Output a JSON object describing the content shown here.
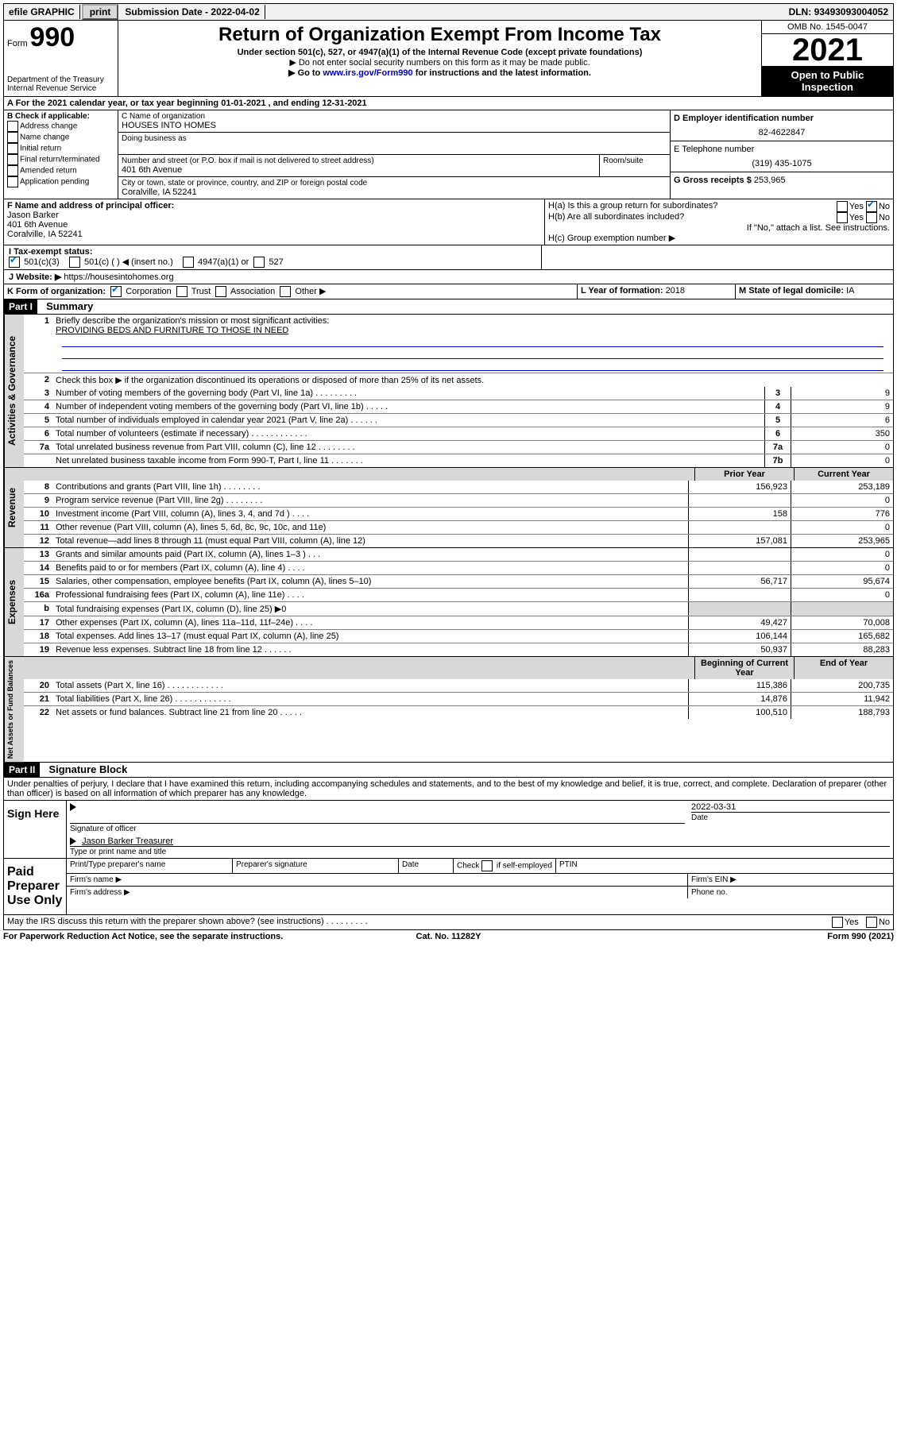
{
  "topbar": {
    "efile": "efile GRAPHIC",
    "print": "print",
    "sub_label": "Submission Date - ",
    "sub_date": "2022-04-02",
    "dln_label": "DLN: ",
    "dln": "93493093004052"
  },
  "header": {
    "form_prefix": "Form",
    "form_no": "990",
    "dept": "Department of the Treasury",
    "irs": "Internal Revenue Service",
    "title": "Return of Organization Exempt From Income Tax",
    "sub1": "Under section 501(c), 527, or 4947(a)(1) of the Internal Revenue Code (except private foundations)",
    "sub2": "▶ Do not enter social security numbers on this form as it may be made public.",
    "sub3_a": "▶ Go to ",
    "sub3_link": "www.irs.gov/Form990",
    "sub3_b": " for instructions and the latest information.",
    "omb": "OMB No. 1545-0047",
    "year": "2021",
    "open": "Open to Public Inspection"
  },
  "period": {
    "a": "A For the 2021 calendar year, or tax year beginning ",
    "begin": "01-01-2021",
    "mid": " , and ending ",
    "end": "12-31-2021"
  },
  "boxB": {
    "title": "B Check if applicable:",
    "items": [
      "Address change",
      "Name change",
      "Initial return",
      "Final return/terminated",
      "Amended return",
      "Application pending"
    ]
  },
  "boxC": {
    "c_label": "C Name of organization",
    "org": "HOUSES INTO HOMES",
    "dba_label": "Doing business as",
    "addr_label": "Number and street (or P.O. box if mail is not delivered to street address)",
    "room_label": "Room/suite",
    "addr": "401 6th Avenue",
    "city_label": "City or town, state or province, country, and ZIP or foreign postal code",
    "city": "Coralville, IA  52241"
  },
  "boxD": {
    "d_label": "D Employer identification number",
    "ein": "82-4622847",
    "e_label": "E Telephone number",
    "phone": "(319) 435-1075",
    "g_label": "G Gross receipts $ ",
    "gross": "253,965"
  },
  "boxF": {
    "label": "F Name and address of principal officer:",
    "name": "Jason Barker",
    "addr1": "401 6th Avenue",
    "addr2": "Coralville, IA  52241"
  },
  "boxH": {
    "ha": "H(a)  Is this a group return for subordinates?",
    "hb": "H(b)  Are all subordinates included?",
    "hb_note": "If \"No,\" attach a list. See instructions.",
    "hc": "H(c)  Group exemption number ▶",
    "yes": "Yes",
    "no": "No"
  },
  "boxI": {
    "label": "I   Tax-exempt status:",
    "opt1": "501(c)(3)",
    "opt2": "501(c) (   ) ◀ (insert no.)",
    "opt3": "4947(a)(1) or",
    "opt4": "527"
  },
  "boxJ": {
    "label": "J   Website: ▶ ",
    "url": "https://housesintohomes.org"
  },
  "boxK": {
    "label": "K Form of organization:",
    "opts": [
      "Corporation",
      "Trust",
      "Association",
      "Other ▶"
    ]
  },
  "boxL": {
    "label": "L Year of formation: ",
    "val": "2018"
  },
  "boxM": {
    "label": "M State of legal domicile: ",
    "val": "IA"
  },
  "part1": {
    "tag": "Part I",
    "title": "Summary",
    "q1_label": "1",
    "q1": "Briefly describe the organization's mission or most significant activities:",
    "mission": "PROVIDING BEDS AND FURNITURE TO THOSE IN NEED",
    "q2_label": "2",
    "q2": "Check this box ▶        if the organization discontinued its operations or disposed of more than 25% of its net assets."
  },
  "governance": {
    "label": "Activities & Governance",
    "rows": [
      {
        "n": "3",
        "d": "Number of voting members of the governing body (Part VI, line 1a)   .    .    .    .    .    .    .    .    .",
        "b": "3",
        "v": "9"
      },
      {
        "n": "4",
        "d": "Number of independent voting members of the governing body (Part VI, line 1b)   .    .    .    .    .",
        "b": "4",
        "v": "9"
      },
      {
        "n": "5",
        "d": "Total number of individuals employed in calendar year 2021 (Part V, line 2a)    .    .    .    .    .    .",
        "b": "5",
        "v": "6"
      },
      {
        "n": "6",
        "d": "Total number of volunteers (estimate if necessary)     .    .    .    .    .    .    .    .    .    .    .    .",
        "b": "6",
        "v": "350"
      },
      {
        "n": "7a",
        "d": "Total unrelated business revenue from Part VIII, column (C), line 12    .    .    .    .    .    .    .    .",
        "b": "7a",
        "v": "0"
      },
      {
        "n": "",
        "d": "Net unrelated business taxable income from Form 990-T, Part I, line 11    .    .    .    .    .    .    .",
        "b": "7b",
        "v": "0"
      }
    ]
  },
  "revenue": {
    "label": "Revenue",
    "hdr_prior": "Prior Year",
    "hdr_curr": "Current Year",
    "rows": [
      {
        "n": "8",
        "d": "Contributions and grants (Part VIII, line 1h)    .    .    .    .    .    .    .    .",
        "p": "156,923",
        "c": "253,189"
      },
      {
        "n": "9",
        "d": "Program service revenue (Part VIII, line 2g)    .    .    .    .    .    .    .    .",
        "p": "",
        "c": "0"
      },
      {
        "n": "10",
        "d": "Investment income (Part VIII, column (A), lines 3, 4, and 7d )    .    .    .    .",
        "p": "158",
        "c": "776"
      },
      {
        "n": "11",
        "d": "Other revenue (Part VIII, column (A), lines 5, 6d, 8c, 9c, 10c, and 11e)",
        "p": "",
        "c": "0"
      },
      {
        "n": "12",
        "d": "Total revenue—add lines 8 through 11 (must equal Part VIII, column (A), line 12)",
        "p": "157,081",
        "c": "253,965"
      }
    ]
  },
  "expenses": {
    "label": "Expenses",
    "rows": [
      {
        "n": "13",
        "d": "Grants and similar amounts paid (Part IX, column (A), lines 1–3 )    .    .    .",
        "p": "",
        "c": "0"
      },
      {
        "n": "14",
        "d": "Benefits paid to or for members (Part IX, column (A), line 4)    .    .    .    .",
        "p": "",
        "c": "0"
      },
      {
        "n": "15",
        "d": "Salaries, other compensation, employee benefits (Part IX, column (A), lines 5–10)",
        "p": "56,717",
        "c": "95,674"
      },
      {
        "n": "16a",
        "d": "Professional fundraising fees (Part IX, column (A), line 11e)    .    .    .    .",
        "p": "",
        "c": "0"
      },
      {
        "n": "b",
        "d": "Total fundraising expenses (Part IX, column (D), line 25) ▶0",
        "p": "SHADE",
        "c": "SHADE"
      },
      {
        "n": "17",
        "d": "Other expenses (Part IX, column (A), lines 11a–11d, 11f–24e)   .    .    .    .",
        "p": "49,427",
        "c": "70,008"
      },
      {
        "n": "18",
        "d": "Total expenses. Add lines 13–17 (must equal Part IX, column (A), line 25)",
        "p": "106,144",
        "c": "165,682"
      },
      {
        "n": "19",
        "d": "Revenue less expenses. Subtract line 18 from line 12    .    .    .    .    .    .",
        "p": "50,937",
        "c": "88,283"
      }
    ]
  },
  "netassets": {
    "label": "Net Assets or Fund Balances",
    "hdr_begin": "Beginning of Current Year",
    "hdr_end": "End of Year",
    "rows": [
      {
        "n": "20",
        "d": "Total assets (Part X, line 16)    .    .    .    .    .    .    .    .    .    .    .    .",
        "p": "115,386",
        "c": "200,735"
      },
      {
        "n": "21",
        "d": "Total liabilities (Part X, line 26)    .    .    .    .    .    .    .    .    .    .    .    .",
        "p": "14,876",
        "c": "11,942"
      },
      {
        "n": "22",
        "d": "Net assets or fund balances. Subtract line 21 from line 20    .    .    .    .    .",
        "p": "100,510",
        "c": "188,793"
      }
    ]
  },
  "part2": {
    "tag": "Part II",
    "title": "Signature Block",
    "decl": "Under penalties of perjury, I declare that I have examined this return, including accompanying schedules and statements, and to the best of my knowledge and belief, it is true, correct, and complete. Declaration of preparer (other than officer) is based on all information of which preparer has any knowledge."
  },
  "sign": {
    "here": "Sign Here",
    "sig_officer": "Signature of officer",
    "date_label": "Date",
    "date": "2022-03-31",
    "name": "Jason Barker  Treasurer",
    "name_label": "Type or print name and title"
  },
  "paid": {
    "title": "Paid Preparer Use Only",
    "c1": "Print/Type preparer's name",
    "c2": "Preparer's signature",
    "c3": "Date",
    "c4a": "Check",
    "c4b": "if self-employed",
    "c5": "PTIN",
    "firm_name": "Firm's name    ▶",
    "firm_ein": "Firm's EIN ▶",
    "firm_addr": "Firm's address ▶",
    "phone": "Phone no."
  },
  "footer": {
    "discuss": "May the IRS discuss this return with the preparer shown above? (see instructions)     .    .    .    .    .    .    .    .    .",
    "yes": "Yes",
    "no": "No",
    "paperwork": "For Paperwork Reduction Act Notice, see the separate instructions.",
    "cat": "Cat. No. 11282Y",
    "form": "Form 990 (2021)"
  }
}
